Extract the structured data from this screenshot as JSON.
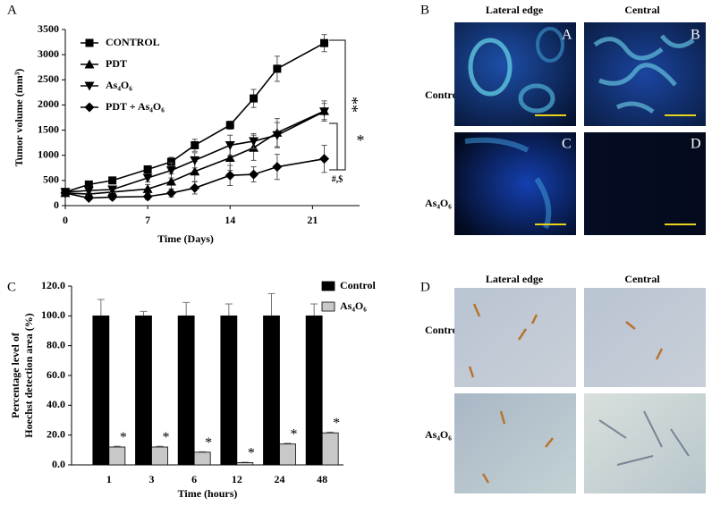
{
  "chart_data": [
    {
      "type": "line",
      "panel": "A",
      "x_label": "Time (Days)",
      "y_label": "Tumor volume (mm³)",
      "x": [
        0,
        2,
        4,
        7,
        9,
        11,
        14,
        16,
        18,
        22
      ],
      "xlim": [
        0,
        25
      ],
      "xticks": [
        0,
        7,
        14,
        21
      ],
      "ylim": [
        0,
        3500
      ],
      "yticks": [
        0,
        500,
        1000,
        1500,
        2000,
        2500,
        3000,
        3500
      ],
      "series": [
        {
          "name": "CONTROL",
          "color": "#000000",
          "marker": "square",
          "values": [
            270,
            420,
            500,
            720,
            870,
            1200,
            1600,
            2130,
            2720,
            3230
          ],
          "errors": [
            40,
            60,
            60,
            50,
            90,
            120,
            80,
            180,
            250,
            170
          ]
        },
        {
          "name": "PDT",
          "color": "#000000",
          "marker": "triangle-up",
          "values": [
            250,
            230,
            270,
            330,
            480,
            680,
            950,
            1150,
            1450,
            1880
          ],
          "errors": [
            50,
            40,
            60,
            90,
            150,
            200,
            250,
            250,
            280,
            200
          ]
        },
        {
          "name": "As₄O₆",
          "color": "#000000",
          "marker": "triangle-down",
          "values": [
            270,
            300,
            320,
            550,
            700,
            900,
            1200,
            1280,
            1400,
            1870
          ],
          "errors": [
            40,
            50,
            60,
            80,
            150,
            150,
            200,
            150,
            250,
            160
          ]
        },
        {
          "name": "PDT + As₄O₆",
          "color": "#000000",
          "marker": "diamond",
          "values": [
            250,
            150,
            170,
            180,
            250,
            350,
            600,
            620,
            770,
            930
          ],
          "errors": [
            40,
            40,
            50,
            60,
            80,
            120,
            200,
            150,
            250,
            270
          ]
        }
      ],
      "annotations": [
        "**",
        "*",
        "#,$"
      ]
    },
    {
      "type": "bar",
      "panel": "C",
      "x_label": "Time (hours)",
      "y_label": [
        "Percentage level of",
        "Hoechst detection area (%)"
      ],
      "categories": [
        "1",
        "3",
        "6",
        "12",
        "24",
        "48"
      ],
      "ylim": [
        0,
        120
      ],
      "yticks": [
        {
          "value": 0,
          "label": "0.0"
        },
        {
          "value": 20,
          "label": "20.0"
        },
        {
          "value": 40,
          "label": "40.0"
        },
        {
          "value": 60,
          "label": "60.0"
        },
        {
          "value": 80,
          "label": "80.0"
        },
        {
          "value": 100,
          "label": "100.0"
        },
        {
          "value": 120,
          "label": "120.0"
        }
      ],
      "series": [
        {
          "name": "Control",
          "color": "#000000",
          "values": [
            100,
            100,
            100,
            100,
            100,
            100
          ],
          "errors": [
            11,
            3,
            9,
            8,
            15,
            8
          ]
        },
        {
          "name": "As₄O₆",
          "color": "#c8c8c8",
          "values": [
            12,
            12,
            8.5,
            1.5,
            14,
            21.5
          ],
          "errors": [
            0.5,
            0.5,
            0.3,
            0.3,
            0.5,
            0.5
          ],
          "value_annotations": [
            "*",
            "*",
            "*",
            "*",
            "*",
            "*"
          ]
        }
      ]
    }
  ],
  "image_panels": [
    {
      "panel": "B",
      "columns": [
        "Lateral edge",
        "Central"
      ],
      "rows": [
        "Control",
        "As₄O₆"
      ],
      "tiles": [
        "A",
        "B",
        "C",
        "D"
      ]
    },
    {
      "panel": "D",
      "columns": [
        "Lateral edge",
        "Central"
      ],
      "rows": [
        "Control",
        "As₄O₆"
      ]
    }
  ]
}
